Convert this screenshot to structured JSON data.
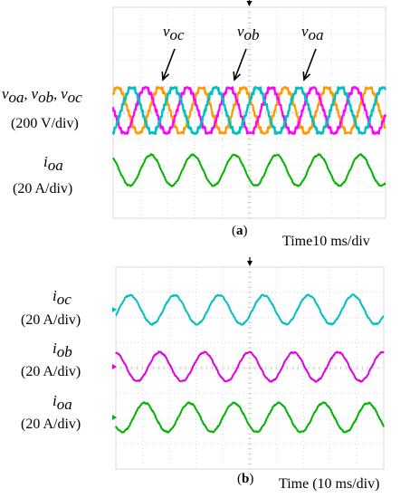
{
  "chart_data": [
    {
      "panel_label": "a",
      "time_scale": "Time10 ms/div",
      "voltage_label": {
        "sym": "v",
        "subs": [
          "oa",
          "ob",
          "oc"
        ],
        "scale": "(200 V/div)"
      },
      "current_label": {
        "sym": "i",
        "sub": "oa",
        "scale": "(20 A/div)"
      },
      "annotations": [
        {
          "sym": "v",
          "sub": "oc"
        },
        {
          "sym": "v",
          "sub": "ob"
        },
        {
          "sym": "v",
          "sub": "oa"
        }
      ],
      "colors": {
        "voa": "#ff00ff",
        "vob": "#00c0c0",
        "voc": "#ff9900",
        "ioa": "#00b400"
      },
      "type": "line",
      "divisions": {
        "x": 10,
        "y": 8
      },
      "series": [
        {
          "name": "v_oa",
          "periods_visible": 6.5
        },
        {
          "name": "v_ob",
          "periods_visible": 6.5
        },
        {
          "name": "v_oc",
          "periods_visible": 6.5
        },
        {
          "name": "i_oa",
          "periods_visible": 6.5
        }
      ]
    },
    {
      "panel_label": "b",
      "time_scale": "Time (10 ms/div)",
      "labels": [
        {
          "sym": "i",
          "sub": "oc",
          "scale": "(20 A/div)"
        },
        {
          "sym": "i",
          "sub": "ob",
          "scale": "(20 A/div)"
        },
        {
          "sym": "i",
          "sub": "oa",
          "scale": "(20 A/div)"
        }
      ],
      "colors": {
        "ioc": "#00c0c0",
        "iob": "#e000e0",
        "ioa": "#00b400"
      },
      "type": "line",
      "divisions": {
        "x": 10,
        "y": 8
      },
      "series": [
        {
          "name": "i_oc",
          "periods_visible": 6.0
        },
        {
          "name": "i_ob",
          "periods_visible": 6.0
        },
        {
          "name": "i_oa",
          "periods_visible": 6.0
        }
      ]
    }
  ]
}
